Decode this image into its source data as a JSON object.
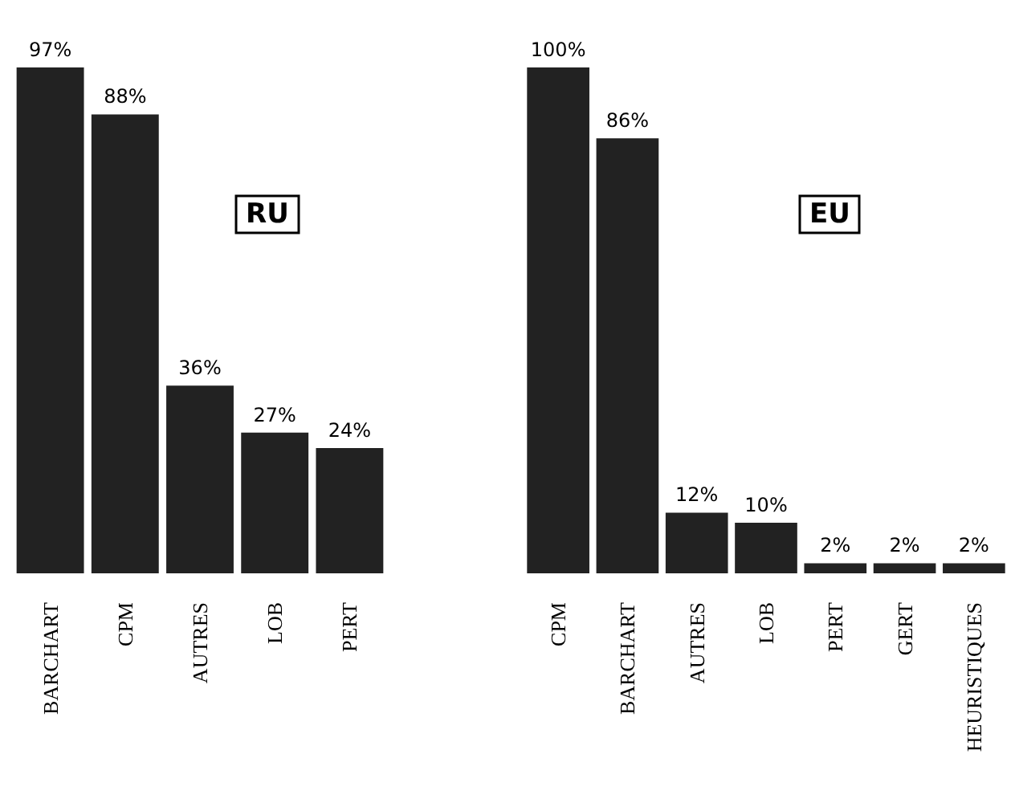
{
  "chart_data": [
    {
      "type": "bar",
      "title": "RU",
      "categories": [
        "BARCHART",
        "CPM",
        "AUTRES",
        "LOB",
        "PERT"
      ],
      "values": [
        97,
        88,
        36,
        27,
        24
      ],
      "value_labels": [
        "97%",
        "88%",
        "36%",
        "27%",
        "24%"
      ],
      "color": "#222222"
    },
    {
      "type": "bar",
      "title": "EU",
      "categories": [
        "CPM",
        "BARCHART",
        "AUTRES",
        "LOB",
        "PERT",
        "GERT",
        "HEURISTIQUES"
      ],
      "values": [
        100,
        86,
        12,
        10,
        2,
        2,
        2
      ],
      "value_labels": [
        "100%",
        "86%",
        "12%",
        "10%",
        "2%",
        "2%",
        "2%"
      ],
      "color": "#222222"
    }
  ]
}
